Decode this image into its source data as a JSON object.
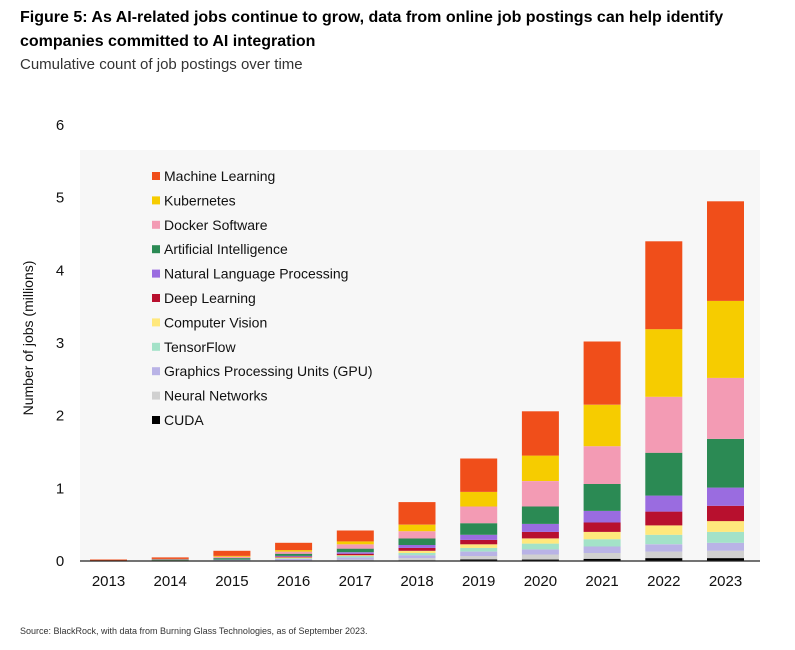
{
  "title": "Figure 5: As AI-related jobs continue to grow, data from online job postings can help identify companies committed to AI integration",
  "subtitle": "Cumulative count of job postings over time",
  "source": "Source: BlackRock, with data from Burning Glass Technologies, as of September 2023.",
  "chart_data": {
    "type": "bar",
    "stacked": true,
    "ylabel": "Number of jobs (millions)",
    "xlabel": "",
    "ylim": [
      0,
      6
    ],
    "yticks": [
      "0",
      "1",
      "2",
      "3",
      "4",
      "5",
      "6"
    ],
    "legend_position": "top-left",
    "categories": [
      "2013",
      "2014",
      "2015",
      "2016",
      "2017",
      "2018",
      "2019",
      "2020",
      "2021",
      "2022",
      "2023"
    ],
    "series": [
      {
        "name": "CUDA",
        "color": "#000000",
        "values": [
          0,
          0,
          0,
          0,
          0,
          0.01,
          0.02,
          0.02,
          0.03,
          0.04,
          0.04
        ]
      },
      {
        "name": "Neural Networks",
        "color": "#d0d0d0",
        "values": [
          0,
          0,
          0.01,
          0.01,
          0.02,
          0.03,
          0.05,
          0.07,
          0.08,
          0.09,
          0.1
        ]
      },
      {
        "name": "Graphics Processing Units (GPU)",
        "color": "#b9b3e6",
        "values": [
          0,
          0,
          0.01,
          0.02,
          0.03,
          0.04,
          0.06,
          0.07,
          0.09,
          0.1,
          0.11
        ]
      },
      {
        "name": "TensorFlow",
        "color": "#a3e2c8",
        "values": [
          0,
          0,
          0,
          0.01,
          0.02,
          0.03,
          0.05,
          0.08,
          0.1,
          0.13,
          0.15
        ]
      },
      {
        "name": "Computer Vision",
        "color": "#ffe87c",
        "values": [
          0,
          0.01,
          0,
          0.01,
          0.01,
          0.03,
          0.05,
          0.07,
          0.1,
          0.13,
          0.15
        ]
      },
      {
        "name": "Deep Learning",
        "color": "#b8102e",
        "values": [
          0,
          0,
          0,
          0.01,
          0.02,
          0.04,
          0.06,
          0.09,
          0.13,
          0.19,
          0.21
        ]
      },
      {
        "name": "Natural Language Processing",
        "color": "#9a6ce0",
        "values": [
          0,
          0,
          0,
          0.01,
          0.02,
          0.04,
          0.07,
          0.11,
          0.16,
          0.22,
          0.25
        ]
      },
      {
        "name": "Artificial Intelligence",
        "color": "#2b8a54",
        "values": [
          0,
          0.01,
          0.02,
          0.03,
          0.05,
          0.09,
          0.16,
          0.24,
          0.37,
          0.59,
          0.67
        ]
      },
      {
        "name": "Docker Software",
        "color": "#f39bb4",
        "values": [
          0,
          0.01,
          0.02,
          0.03,
          0.06,
          0.1,
          0.23,
          0.35,
          0.52,
          0.77,
          0.84
        ]
      },
      {
        "name": "Kubernetes",
        "color": "#f6cc00",
        "values": [
          0,
          0,
          0.01,
          0.02,
          0.04,
          0.09,
          0.2,
          0.35,
          0.57,
          0.93,
          1.06
        ]
      },
      {
        "name": "Machine Learning",
        "color": "#f04e1a",
        "values": [
          0.02,
          0.02,
          0.07,
          0.1,
          0.15,
          0.31,
          0.46,
          0.61,
          0.87,
          1.21,
          1.37
        ]
      }
    ]
  }
}
